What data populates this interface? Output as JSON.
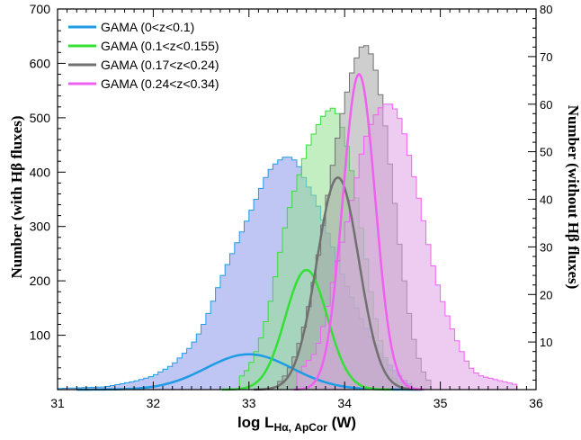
{
  "chart_data": {
    "type": "area",
    "xlabel_main": "log L",
    "xlabel_sub": "Hα, ApCor",
    "xlabel_unit": " (W)",
    "ylabel_left": "Number (with Hβ fluxes)",
    "ylabel_right": "Number (without Hβ fluxes)",
    "xlim": [
      31,
      36
    ],
    "ylim": [
      0,
      700
    ],
    "ylim_right": [
      0,
      80
    ],
    "x_ticks": [
      "31",
      "32",
      "33",
      "34",
      "35",
      "36"
    ],
    "y_ticks": [
      "100",
      "200",
      "300",
      "400",
      "500",
      "600",
      "700"
    ],
    "y_ticks_right": [
      "10",
      "20",
      "30",
      "40",
      "50",
      "60",
      "70",
      "80"
    ],
    "legend_position": "top-left",
    "grid": false,
    "bin_width": 0.05,
    "series": [
      {
        "name": "GAMA (0<z<0.1)",
        "color": "#1e9be6",
        "fill": "#8c98ea",
        "hist_x": [
          31.0,
          31.5,
          31.8,
          32.0,
          32.2,
          32.4,
          32.5,
          32.6,
          32.7,
          32.8,
          32.9,
          33.0,
          33.1,
          33.2,
          33.3,
          33.4,
          33.5,
          33.6,
          33.7,
          33.8,
          33.9,
          34.0,
          34.1,
          34.2,
          34.3,
          34.4,
          34.5,
          34.6,
          34.7
        ],
        "hist_y": [
          2,
          5,
          15,
          25,
          45,
          80,
          110,
          150,
          200,
          240,
          280,
          320,
          360,
          400,
          420,
          430,
          420,
          380,
          350,
          300,
          250,
          200,
          160,
          120,
          90,
          60,
          40,
          20,
          8
        ],
        "gauss": {
          "mu": 33.0,
          "sigma": 0.45,
          "amp": 65
        }
      },
      {
        "name": "GAMA (0.1<z<0.155)",
        "color": "#33e033",
        "fill": "#8fe08f",
        "hist_x": [
          32.9,
          33.0,
          33.1,
          33.2,
          33.3,
          33.4,
          33.5,
          33.6,
          33.7,
          33.8,
          33.9,
          34.0,
          34.1,
          34.2,
          34.3,
          34.4,
          34.5,
          34.6
        ],
        "hist_y": [
          20,
          40,
          80,
          140,
          230,
          320,
          380,
          440,
          480,
          510,
          520,
          470,
          380,
          270,
          150,
          70,
          25,
          8
        ],
        "gauss": {
          "mu": 33.6,
          "sigma": 0.22,
          "amp": 220
        }
      },
      {
        "name": "GAMA (0.17<z<0.24)",
        "color": "#707070",
        "fill": "#a6a6a6",
        "hist_x": [
          33.3,
          33.4,
          33.5,
          33.6,
          33.7,
          33.8,
          33.9,
          34.0,
          34.1,
          34.2,
          34.3,
          34.4,
          34.5,
          34.6,
          34.7,
          34.8,
          34.9
        ],
        "hist_y": [
          10,
          30,
          70,
          130,
          220,
          330,
          440,
          530,
          600,
          640,
          610,
          520,
          380,
          230,
          110,
          40,
          10
        ],
        "gauss": {
          "mu": 33.93,
          "sigma": 0.22,
          "amp": 390
        }
      },
      {
        "name": "GAMA (0.24<z<0.34)",
        "color": "#f060f0",
        "fill": "#e0a3e6",
        "hist_x": [
          33.5,
          33.7,
          33.8,
          33.9,
          34.0,
          34.1,
          34.2,
          34.3,
          34.4,
          34.5,
          34.6,
          34.7,
          34.8,
          34.9,
          35.0,
          35.1,
          35.2,
          35.3,
          35.4,
          35.6,
          35.8
        ],
        "hist_y": [
          3,
          8,
          15,
          25,
          33,
          42,
          52,
          57,
          60,
          60,
          56,
          47,
          38,
          28,
          20,
          14,
          9,
          5,
          3,
          2,
          1
        ],
        "hist_axis": "right",
        "gauss": {
          "mu": 34.15,
          "sigma": 0.17,
          "amp": 580
        }
      }
    ]
  }
}
